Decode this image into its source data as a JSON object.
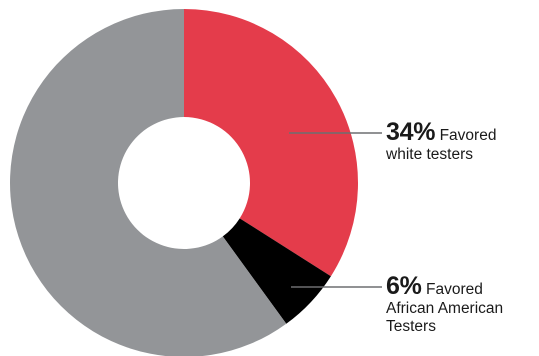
{
  "chart_data": {
    "type": "pie",
    "variant": "donut",
    "slices": [
      {
        "label": "Favored white testers",
        "value": 34,
        "color": "#e43c4b"
      },
      {
        "label": "Favored African American Testers",
        "value": 6,
        "color": "#000000"
      },
      {
        "label": "",
        "value": 60,
        "color": "#939598"
      }
    ],
    "start_angle_deg": 0,
    "direction": "clockwise"
  },
  "callouts": {
    "white": {
      "percent": "34%",
      "line1": "Favored",
      "line2": "white testers"
    },
    "african_american": {
      "percent": "6%",
      "line1": "Favored",
      "line2": "African American",
      "line3": "Testers"
    }
  }
}
